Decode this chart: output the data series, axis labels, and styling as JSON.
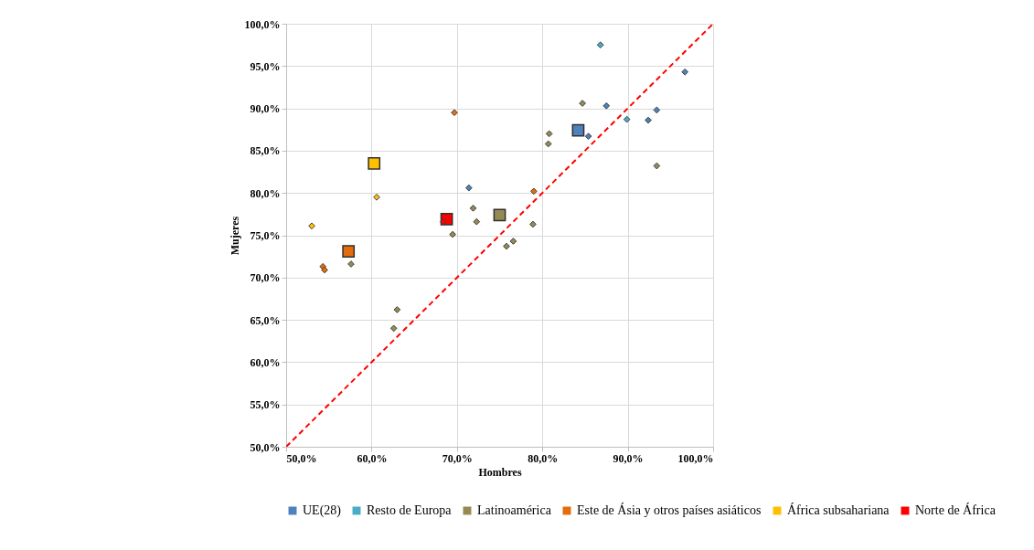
{
  "chart_data": {
    "type": "scatter",
    "xlabel": "Hombres",
    "ylabel": "Mujeres",
    "xlim": [
      50,
      100
    ],
    "ylim": [
      50,
      100
    ],
    "xticks": [
      {
        "value": 50,
        "label": "50,0%"
      },
      {
        "value": 60,
        "label": "60,0%"
      },
      {
        "value": 70,
        "label": "70,0%"
      },
      {
        "value": 80,
        "label": "80,0%"
      },
      {
        "value": 90,
        "label": "90,0%"
      },
      {
        "value": 100,
        "label": "100,0%"
      }
    ],
    "yticks": [
      {
        "value": 50,
        "label": "50,0%"
      },
      {
        "value": 55,
        "label": "55,0%"
      },
      {
        "value": 60,
        "label": "60,0%"
      },
      {
        "value": 65,
        "label": "65,0%"
      },
      {
        "value": 70,
        "label": "70,0%"
      },
      {
        "value": 75,
        "label": "75,0%"
      },
      {
        "value": 80,
        "label": "80,0%"
      },
      {
        "value": 85,
        "label": "85,0%"
      },
      {
        "value": 90,
        "label": "90,0%"
      },
      {
        "value": 95,
        "label": "95,0%"
      },
      {
        "value": 100,
        "label": "100,0%"
      }
    ],
    "grid": true,
    "legend": "bottom",
    "series": [
      {
        "name": "UE(28)",
        "color": "#4f81bd",
        "marker": "diamond",
        "x": [
          96.7,
          87.5,
          92.4,
          93.4,
          85.4,
          71.4
        ],
        "values": [
          94.3,
          90.3,
          88.6,
          89.8,
          86.7,
          80.6
        ]
      },
      {
        "name": "Resto de Europa",
        "color": "#4bacc6",
        "marker": "diamond",
        "x": [
          86.8,
          89.9
        ],
        "values": [
          97.5,
          88.7
        ]
      },
      {
        "name": "Latinoamérica",
        "color": "#948a54",
        "marker": "diamond",
        "x": [
          84.7,
          80.8,
          80.7,
          93.4,
          78.9,
          71.9,
          72.3,
          69.5,
          76.6,
          75.8,
          63.0,
          62.6,
          57.6
        ],
        "values": [
          90.6,
          87.0,
          85.8,
          83.2,
          76.3,
          78.2,
          76.6,
          75.1,
          74.3,
          73.7,
          66.2,
          64.0,
          71.6
        ]
      },
      {
        "name": "Este de Ásia y otros países asiáticos",
        "color": "#e46c0a",
        "marker": "diamond",
        "x": [
          79.0,
          69.7,
          54.3,
          54.5
        ],
        "values": [
          80.2,
          89.5,
          71.3,
          70.9
        ]
      },
      {
        "name": "África subsahariana",
        "color": "#ffc000",
        "marker": "diamond",
        "x": [
          60.6,
          53.0
        ],
        "values": [
          79.5,
          76.1
        ]
      },
      {
        "name": "Norte de África",
        "color": "#ff0000",
        "marker": "diamond",
        "x": [
          68.4
        ],
        "values": [
          76.6
        ]
      },
      {
        "color": "#4f81bd",
        "marker": "square",
        "x": [
          84.2
        ],
        "values": [
          87.4
        ]
      },
      {
        "color": "#948a54",
        "marker": "square",
        "x": [
          75.0
        ],
        "values": [
          77.4
        ]
      },
      {
        "color": "#e46c0a",
        "marker": "square",
        "x": [
          57.3
        ],
        "values": [
          73.1
        ]
      },
      {
        "color": "#ffc000",
        "marker": "square",
        "x": [
          60.3
        ],
        "values": [
          83.5
        ]
      },
      {
        "color": "#ff0000",
        "marker": "square",
        "x": [
          68.8
        ],
        "values": [
          76.9
        ]
      },
      {
        "type": "line",
        "color": "#ff0000",
        "line_style": "dashed",
        "marker": "none",
        "x": [
          50,
          100
        ],
        "values": [
          50,
          100
        ]
      }
    ]
  }
}
